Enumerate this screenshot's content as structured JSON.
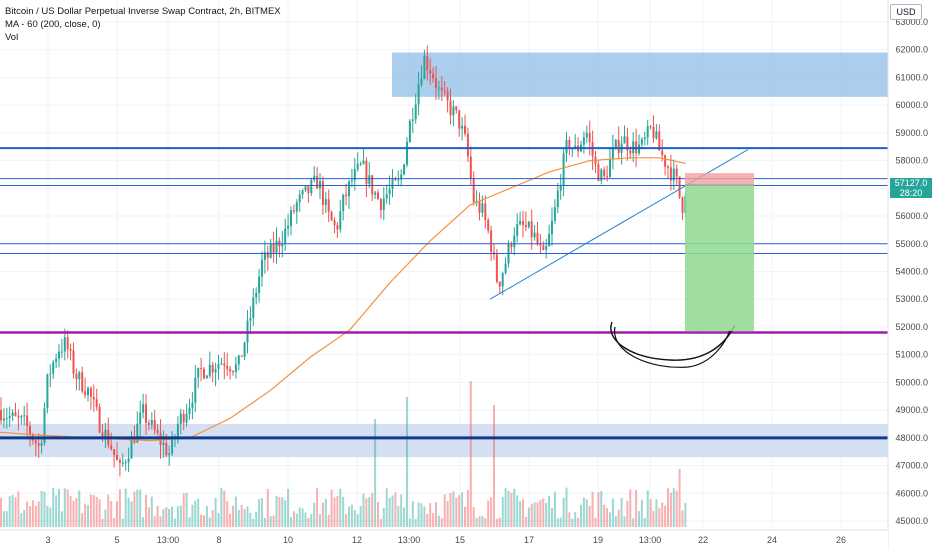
{
  "legend": {
    "symbol": "Bitcoin / US Dollar Perpetual Inverse Swap Contract, 2h, BITMEX",
    "ma": "MA - 60 (200, close, 0)",
    "vol": "Vol"
  },
  "currency": "USD",
  "last_price": "57127.0",
  "countdown": "28:20",
  "chart_data": {
    "type": "candlestick",
    "y_axis": {
      "range": [
        44800,
        63500
      ],
      "ticks": [
        45000,
        46000,
        47000,
        48000,
        49000,
        50000,
        51000,
        52000,
        53000,
        54000,
        55000,
        56000,
        57000,
        58000,
        59000,
        60000,
        61000,
        62000,
        63000
      ],
      "tick_labels": [
        "45000.0",
        "46000.0",
        "47000.0",
        "48000.0",
        "49000.0",
        "50000.0",
        "51000.0",
        "52000.0",
        "53000.0",
        "54000.0",
        "55000.0",
        "56000.0",
        "57000.0",
        "58000.0",
        "59000.0",
        "60000.0",
        "61000.0",
        "62000.0",
        "63000.0"
      ]
    },
    "x_axis": {
      "labels": [
        {
          "text": "3",
          "pos": 48
        },
        {
          "text": "5",
          "pos": 117
        },
        {
          "text": "13:00",
          "pos": 168
        },
        {
          "text": "8",
          "pos": 219
        },
        {
          "text": "10",
          "pos": 288
        },
        {
          "text": "12",
          "pos": 357
        },
        {
          "text": "13:00",
          "pos": 409
        },
        {
          "text": "15",
          "pos": 460
        },
        {
          "text": "17",
          "pos": 529
        },
        {
          "text": "19",
          "pos": 598
        },
        {
          "text": "13:00",
          "pos": 650
        },
        {
          "text": "22",
          "pos": 703
        },
        {
          "text": "24",
          "pos": 772
        },
        {
          "text": "26",
          "pos": 841
        }
      ]
    },
    "price_path": [
      [
        0,
        49000
      ],
      [
        12,
        48700
      ],
      [
        25,
        48500
      ],
      [
        40,
        47600
      ],
      [
        48,
        50200
      ],
      [
        58,
        51200
      ],
      [
        66,
        51400
      ],
      [
        75,
        50300
      ],
      [
        88,
        49700
      ],
      [
        100,
        48500
      ],
      [
        110,
        47800
      ],
      [
        120,
        46800
      ],
      [
        130,
        47700
      ],
      [
        143,
        48900
      ],
      [
        158,
        48000
      ],
      [
        170,
        47400
      ],
      [
        178,
        48500
      ],
      [
        190,
        49300
      ],
      [
        200,
        50400
      ],
      [
        212,
        50600
      ],
      [
        224,
        50800
      ],
      [
        238,
        50500
      ],
      [
        250,
        52300
      ],
      [
        262,
        54300
      ],
      [
        274,
        54800
      ],
      [
        286,
        55500
      ],
      [
        296,
        56400
      ],
      [
        306,
        56800
      ],
      [
        318,
        57300
      ],
      [
        328,
        56000
      ],
      [
        336,
        55500
      ],
      [
        344,
        56600
      ],
      [
        352,
        57300
      ],
      [
        362,
        57800
      ],
      [
        372,
        57000
      ],
      [
        380,
        56500
      ],
      [
        392,
        57000
      ],
      [
        400,
        57200
      ],
      [
        408,
        59000
      ],
      [
        416,
        60400
      ],
      [
        424,
        61700
      ],
      [
        432,
        61200
      ],
      [
        440,
        60400
      ],
      [
        448,
        60000
      ],
      [
        458,
        59500
      ],
      [
        466,
        58600
      ],
      [
        474,
        56500
      ],
      [
        482,
        56200
      ],
      [
        490,
        55200
      ],
      [
        498,
        53500
      ],
      [
        506,
        54400
      ],
      [
        514,
        55500
      ],
      [
        524,
        55600
      ],
      [
        534,
        55300
      ],
      [
        544,
        54400
      ],
      [
        554,
        56000
      ],
      [
        560,
        57300
      ],
      [
        568,
        58700
      ],
      [
        576,
        58300
      ],
      [
        586,
        59100
      ],
      [
        596,
        57700
      ],
      [
        604,
        57300
      ],
      [
        612,
        58200
      ],
      [
        622,
        58800
      ],
      [
        632,
        58500
      ],
      [
        642,
        58500
      ],
      [
        652,
        59200
      ],
      [
        660,
        58300
      ],
      [
        668,
        57800
      ],
      [
        676,
        57300
      ],
      [
        682,
        56300
      ],
      [
        686,
        57127
      ]
    ],
    "ma_200": [
      [
        0,
        48200
      ],
      [
        40,
        48100
      ],
      [
        90,
        48000
      ],
      [
        150,
        47900
      ],
      [
        190,
        48000
      ],
      [
        230,
        48700
      ],
      [
        270,
        49700
      ],
      [
        310,
        50900
      ],
      [
        350,
        51900
      ],
      [
        390,
        53600
      ],
      [
        430,
        55100
      ],
      [
        470,
        56400
      ],
      [
        510,
        57000
      ],
      [
        550,
        57600
      ],
      [
        590,
        58000
      ],
      [
        630,
        58100
      ],
      [
        660,
        58100
      ],
      [
        686,
        57900
      ]
    ],
    "volume": {
      "baseline_price": 45000,
      "peaks": [
        {
          "x": 407,
          "h": 130
        },
        {
          "x": 470,
          "h": 146
        },
        {
          "x": 375,
          "h": 108
        },
        {
          "x": 494,
          "h": 122
        },
        {
          "x": 680,
          "h": 58
        }
      ]
    },
    "annotations": {
      "rect_zones": [
        {
          "name": "supply-zone",
          "y1": 60300,
          "y2": 61900,
          "x1": 392,
          "x2": 890,
          "color": "#90bde8"
        },
        {
          "name": "demand-zone",
          "y1": 47300,
          "y2": 48500,
          "x1": 0,
          "x2": 890,
          "color": "#c5d6ee"
        }
      ],
      "hlines": [
        {
          "name": "resistance-line",
          "y": 58450,
          "color": "#1e5fc9",
          "w": 2
        },
        {
          "name": "level-a",
          "y": 57350,
          "color": "#2a62c9",
          "w": 1
        },
        {
          "name": "level-b",
          "y": 57100,
          "color": "#2a62c9",
          "w": 1
        },
        {
          "name": "level-c",
          "y": 55000,
          "color": "#2a62c9",
          "w": 1
        },
        {
          "name": "level-d",
          "y": 54650,
          "color": "#2a62c9",
          "w": 1
        },
        {
          "name": "target-line",
          "y": 51800,
          "color": "#9b1fa8",
          "w": 2.5
        },
        {
          "name": "support-line",
          "y": 48000,
          "color": "#103a8f",
          "w": 3
        }
      ],
      "trendline": {
        "x1": 490,
        "y1": 53000,
        "x2": 748,
        "y2": 58400,
        "color": "#2a7fd3"
      },
      "short_position": {
        "x1": 685,
        "x2": 754,
        "entry": 57127,
        "stop": 57550,
        "target": 51850,
        "profit_color": "#8fd88f",
        "loss_color": "#f2a0a0"
      }
    }
  }
}
